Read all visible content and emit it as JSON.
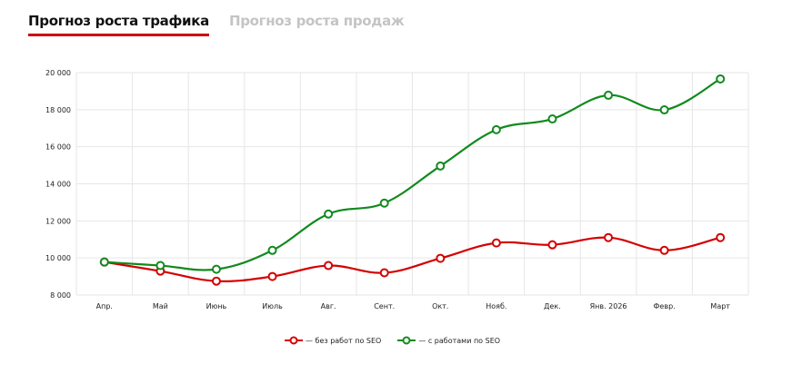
{
  "tabs": [
    {
      "label": "Прогноз роста трафика",
      "active": true
    },
    {
      "label": "Прогноз роста продаж",
      "active": false
    }
  ],
  "chart_data": {
    "type": "line",
    "categories": [
      "Апр.",
      "Май",
      "Июнь",
      "Июль",
      "Авг.",
      "Сент.",
      "Окт.",
      "Нояб.",
      "Дек.",
      "Янв. 2026",
      "Февр.",
      "Март"
    ],
    "ylim": [
      8000,
      20000
    ],
    "yticks": [
      8000,
      10000,
      12000,
      14000,
      16000,
      18000,
      20000
    ],
    "ytick_labels": [
      "8 000",
      "10 000",
      "12 000",
      "14 000",
      "16 000",
      "18 000",
      "20 000"
    ],
    "grid": true,
    "legend_position": "bottom",
    "series": [
      {
        "name": "— без работ по SEO",
        "color": "#d40000",
        "values": [
          9780,
          9290,
          8750,
          9000,
          9590,
          9200,
          9980,
          10810,
          10710,
          11100,
          10410,
          11100
        ]
      },
      {
        "name": "— с работами по SEO",
        "color": "#118a1e",
        "values": [
          9780,
          9590,
          9390,
          10410,
          12370,
          12960,
          14960,
          16920,
          17500,
          18780,
          17990,
          19660
        ]
      }
    ]
  }
}
